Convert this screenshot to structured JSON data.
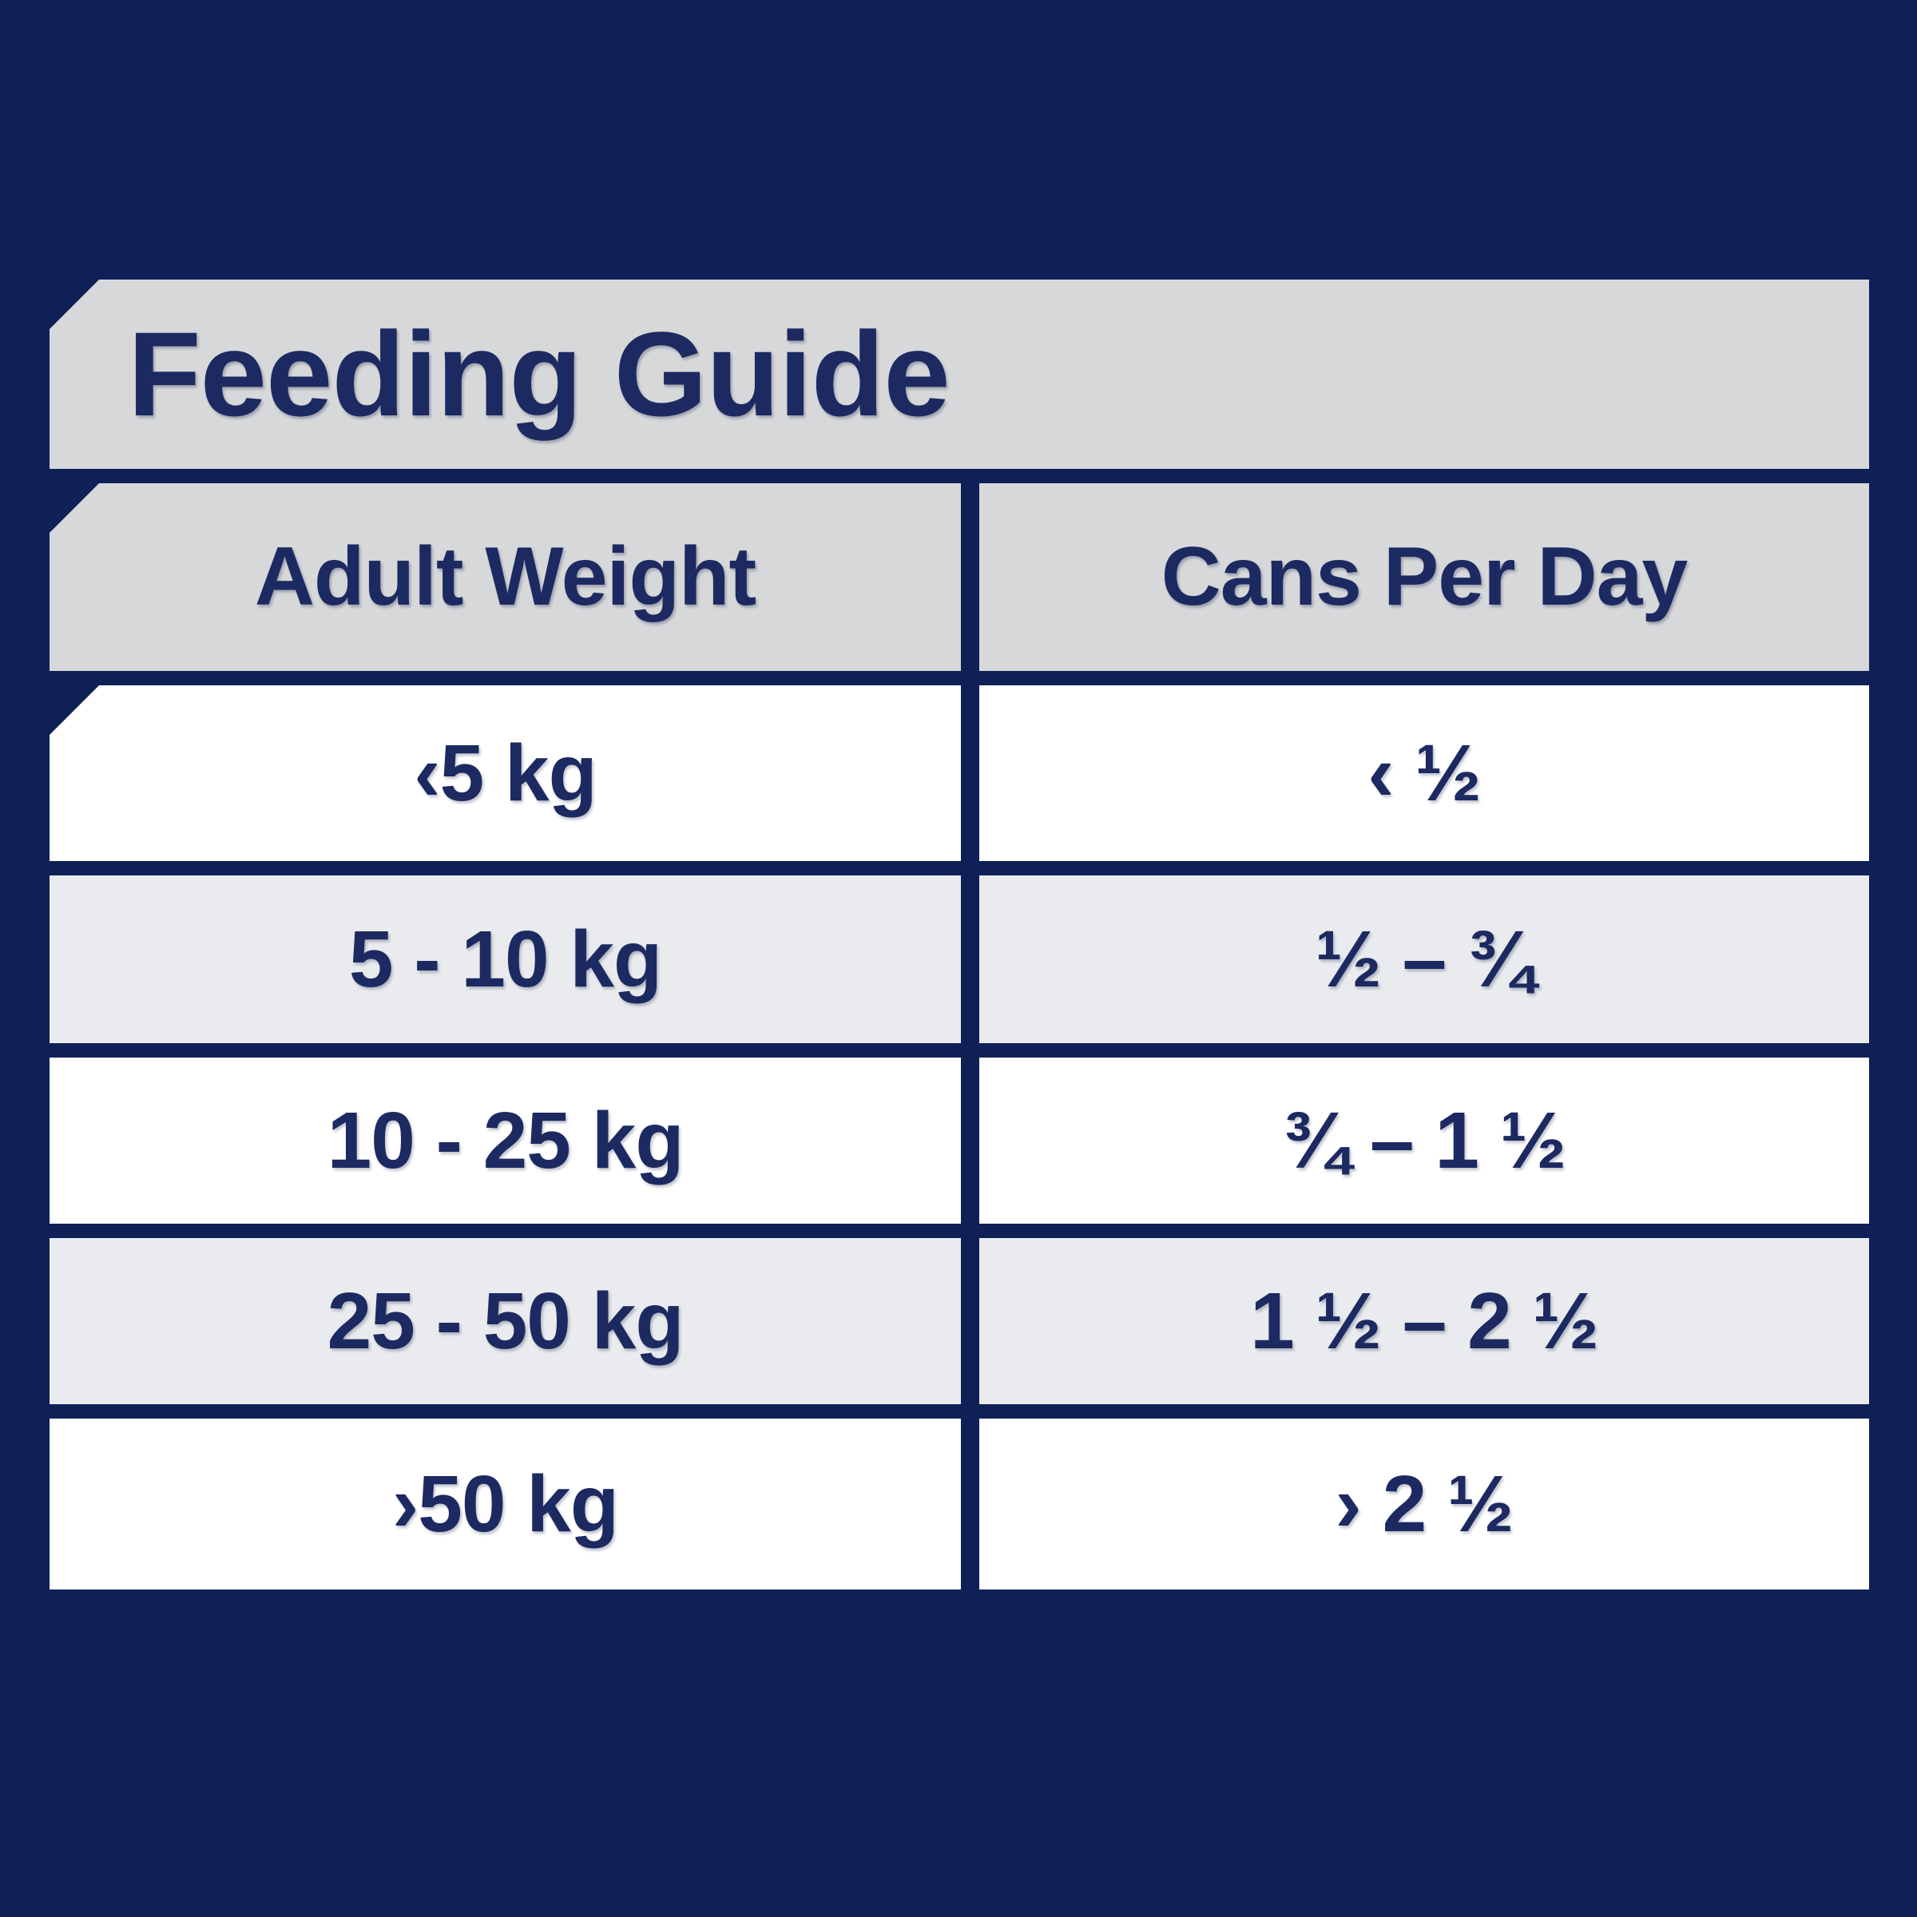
{
  "colors": {
    "bg-navy": "#0e2056",
    "ink": "#1d2a61",
    "header-gray": "#d6d8da",
    "row-white": "#ffffff",
    "row-gray": "#e9ebee"
  },
  "table": {
    "title": "Feeding Guide",
    "columns": [
      {
        "label": "Adult Weight"
      },
      {
        "label": "Cans Per Day"
      }
    ],
    "rows": [
      {
        "adult_weight": "‹5 kg",
        "cans_per_day": "‹ ½"
      },
      {
        "adult_weight": "5 - 10 kg",
        "cans_per_day": "½ – ¾"
      },
      {
        "adult_weight": "10 - 25 kg",
        "cans_per_day": "¾ – 1 ½"
      },
      {
        "adult_weight": "25 - 50 kg",
        "cans_per_day": "1 ½ – 2 ½"
      },
      {
        "adult_weight": "›50 kg",
        "cans_per_day": "› 2 ½"
      }
    ]
  }
}
